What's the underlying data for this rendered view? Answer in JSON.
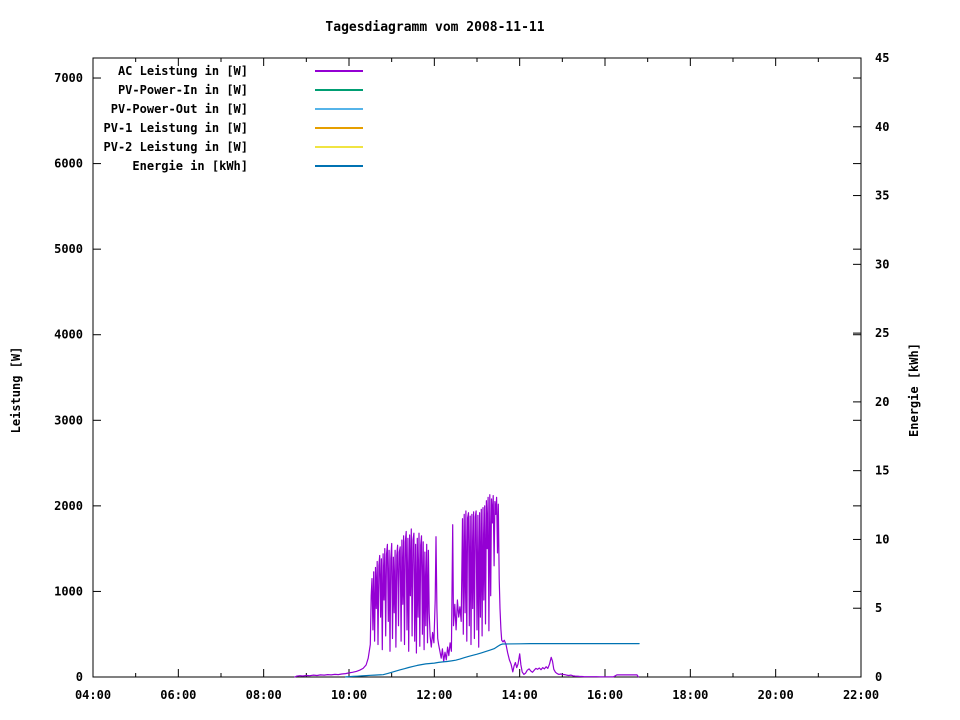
{
  "title": "Tagesdiagramm vom 2008-11-11",
  "colors": {
    "background": "#ffffff",
    "axis": "#000000",
    "text": "#000000",
    "ac_power": "#9400d3",
    "pv_power_in": "#009e73",
    "pv_power_out": "#56b4e9",
    "pv1_power": "#e69f00",
    "pv2_power": "#f0e442",
    "energy": "#0072b2"
  },
  "axes": {
    "x": {
      "major": [
        {
          "h": 4,
          "label": "04:00"
        },
        {
          "h": 6,
          "label": "06:00"
        },
        {
          "h": 8,
          "label": "08:00"
        },
        {
          "h": 10,
          "label": "10:00"
        },
        {
          "h": 12,
          "label": "12:00"
        },
        {
          "h": 14,
          "label": "14:00"
        },
        {
          "h": 16,
          "label": "16:00"
        },
        {
          "h": 18,
          "label": "18:00"
        },
        {
          "h": 20,
          "label": "20:00"
        },
        {
          "h": 22,
          "label": "22:00"
        }
      ],
      "minor": [
        5,
        7,
        9,
        11,
        13,
        15,
        17,
        19,
        21
      ]
    },
    "y_left": {
      "label": "Leistung [W]",
      "ticks": [
        0,
        1000,
        2000,
        3000,
        4000,
        5000,
        6000,
        7000
      ]
    },
    "y_right": {
      "label": "Energie [kWh]",
      "ticks": [
        0,
        5,
        10,
        15,
        20,
        25,
        30,
        35,
        40,
        45
      ]
    }
  },
  "chart_data": {
    "type": "line",
    "title": "Tagesdiagramm vom 2008-11-11",
    "xlabel": "",
    "x_unit": "hour-of-day",
    "xlim": [
      4,
      22
    ],
    "ylabel_left": "Leistung [W]",
    "ylim_left": [
      0,
      7234
    ],
    "ylabel_right": "Energie [kWh]",
    "ylim_right": [
      0,
      45
    ],
    "grid": false,
    "legend_position": "top-left-inside",
    "series": [
      {
        "name": "AC Leistung in [W]",
        "color": "#9400d3",
        "axis": "left",
        "unit": "W",
        "points": [
          [
            8.73,
            0
          ],
          [
            8.78,
            10
          ],
          [
            8.85,
            15
          ],
          [
            8.92,
            12
          ],
          [
            9.0,
            18
          ],
          [
            9.08,
            15
          ],
          [
            9.17,
            22
          ],
          [
            9.25,
            18
          ],
          [
            9.33,
            25
          ],
          [
            9.42,
            22
          ],
          [
            9.5,
            28
          ],
          [
            9.58,
            25
          ],
          [
            9.67,
            30
          ],
          [
            9.75,
            28
          ],
          [
            9.83,
            35
          ],
          [
            9.92,
            40
          ],
          [
            10.0,
            48
          ],
          [
            10.08,
            55
          ],
          [
            10.17,
            65
          ],
          [
            10.25,
            80
          ],
          [
            10.33,
            100
          ],
          [
            10.4,
            140
          ],
          [
            10.45,
            220
          ],
          [
            10.5,
            380
          ],
          [
            10.52,
            950
          ],
          [
            10.54,
            1150
          ],
          [
            10.56,
            550
          ],
          [
            10.58,
            1230
          ],
          [
            10.6,
            420
          ],
          [
            10.62,
            1280
          ],
          [
            10.64,
            800
          ],
          [
            10.66,
            1350
          ],
          [
            10.68,
            380
          ],
          [
            10.7,
            1300
          ],
          [
            10.72,
            1420
          ],
          [
            10.74,
            700
          ],
          [
            10.76,
            1380
          ],
          [
            10.78,
            320
          ],
          [
            10.8,
            1440
          ],
          [
            10.82,
            900
          ],
          [
            10.84,
            1500
          ],
          [
            10.86,
            480
          ],
          [
            10.88,
            1430
          ],
          [
            10.9,
            1550
          ],
          [
            10.92,
            650
          ],
          [
            10.94,
            1480
          ],
          [
            10.96,
            300
          ],
          [
            10.98,
            1380
          ],
          [
            11.0,
            1560
          ],
          [
            11.02,
            450
          ],
          [
            11.04,
            1400
          ],
          [
            11.06,
            750
          ],
          [
            11.08,
            1480
          ],
          [
            11.1,
            350
          ],
          [
            11.12,
            1420
          ],
          [
            11.14,
            1540
          ],
          [
            11.16,
            600
          ],
          [
            11.18,
            1460
          ],
          [
            11.2,
            1520
          ],
          [
            11.22,
            420
          ],
          [
            11.24,
            1600
          ],
          [
            11.26,
            850
          ],
          [
            11.28,
            1650
          ],
          [
            11.3,
            380
          ],
          [
            11.32,
            1580
          ],
          [
            11.34,
            1700
          ],
          [
            11.36,
            550
          ],
          [
            11.38,
            1620
          ],
          [
            11.4,
            300
          ],
          [
            11.42,
            1660
          ],
          [
            11.44,
            950
          ],
          [
            11.46,
            1730
          ],
          [
            11.48,
            480
          ],
          [
            11.5,
            1600
          ],
          [
            11.52,
            1680
          ],
          [
            11.54,
            420
          ],
          [
            11.56,
            1550
          ],
          [
            11.58,
            280
          ],
          [
            11.6,
            1620
          ],
          [
            11.62,
            700
          ],
          [
            11.64,
            1680
          ],
          [
            11.66,
            360
          ],
          [
            11.68,
            1540
          ],
          [
            11.7,
            1650
          ],
          [
            11.72,
            500
          ],
          [
            11.74,
            1580
          ],
          [
            11.76,
            320
          ],
          [
            11.78,
            1460
          ],
          [
            11.8,
            600
          ],
          [
            11.82,
            1550
          ],
          [
            11.84,
            400
          ],
          [
            11.86,
            1480
          ],
          [
            11.88,
            750
          ],
          [
            11.9,
            480
          ],
          [
            11.93,
            350
          ],
          [
            11.96,
            520
          ],
          [
            11.99,
            400
          ],
          [
            12.02,
            900
          ],
          [
            12.04,
            1640
          ],
          [
            12.06,
            800
          ],
          [
            12.08,
            450
          ],
          [
            12.1,
            380
          ],
          [
            12.13,
            300
          ],
          [
            12.16,
            220
          ],
          [
            12.19,
            330
          ],
          [
            12.22,
            180
          ],
          [
            12.25,
            290
          ],
          [
            12.28,
            200
          ],
          [
            12.31,
            350
          ],
          [
            12.34,
            250
          ],
          [
            12.37,
            400
          ],
          [
            12.4,
            300
          ],
          [
            12.43,
            1780
          ],
          [
            12.45,
            600
          ],
          [
            12.48,
            850
          ],
          [
            12.51,
            550
          ],
          [
            12.54,
            900
          ],
          [
            12.57,
            700
          ],
          [
            12.6,
            820
          ],
          [
            12.63,
            650
          ],
          [
            12.66,
            1850
          ],
          [
            12.68,
            500
          ],
          [
            12.7,
            1900
          ],
          [
            12.72,
            750
          ],
          [
            12.74,
            1940
          ],
          [
            12.76,
            420
          ],
          [
            12.78,
            1860
          ],
          [
            12.8,
            1920
          ],
          [
            12.82,
            600
          ],
          [
            12.84,
            1880
          ],
          [
            12.86,
            380
          ],
          [
            12.88,
            1900
          ],
          [
            12.9,
            800
          ],
          [
            12.92,
            1930
          ],
          [
            12.94,
            450
          ],
          [
            12.96,
            1870
          ],
          [
            12.98,
            1940
          ],
          [
            13.0,
            550
          ],
          [
            13.02,
            1890
          ],
          [
            13.04,
            350
          ],
          [
            13.06,
            1920
          ],
          [
            13.08,
            700
          ],
          [
            13.1,
            1960
          ],
          [
            13.12,
            480
          ],
          [
            13.14,
            1980
          ],
          [
            13.16,
            900
          ],
          [
            13.18,
            2000
          ],
          [
            13.2,
            620
          ],
          [
            13.22,
            2060
          ],
          [
            13.24,
            1500
          ],
          [
            13.26,
            2100
          ],
          [
            13.28,
            540
          ],
          [
            13.3,
            2130
          ],
          [
            13.32,
            950
          ],
          [
            13.34,
            2080
          ],
          [
            13.36,
            1800
          ],
          [
            13.38,
            2120
          ],
          [
            13.4,
            1300
          ],
          [
            13.42,
            2050
          ],
          [
            13.44,
            1900
          ],
          [
            13.46,
            2100
          ],
          [
            13.48,
            1450
          ],
          [
            13.5,
            2020
          ],
          [
            13.52,
            1150
          ],
          [
            13.54,
            800
          ],
          [
            13.56,
            560
          ],
          [
            13.58,
            430
          ],
          [
            13.61,
            410
          ],
          [
            13.64,
            430
          ],
          [
            13.68,
            380
          ],
          [
            13.72,
            280
          ],
          [
            13.76,
            200
          ],
          [
            13.8,
            150
          ],
          [
            13.84,
            60
          ],
          [
            13.87,
            130
          ],
          [
            13.9,
            170
          ],
          [
            13.93,
            110
          ],
          [
            13.96,
            150
          ],
          [
            14.0,
            270
          ],
          [
            14.03,
            140
          ],
          [
            14.06,
            60
          ],
          [
            14.1,
            30
          ],
          [
            14.14,
            45
          ],
          [
            14.18,
            80
          ],
          [
            14.22,
            95
          ],
          [
            14.26,
            70
          ],
          [
            14.3,
            55
          ],
          [
            14.34,
            80
          ],
          [
            14.38,
            100
          ],
          [
            14.42,
            90
          ],
          [
            14.46,
            105
          ],
          [
            14.5,
            85
          ],
          [
            14.54,
            110
          ],
          [
            14.58,
            95
          ],
          [
            14.62,
            120
          ],
          [
            14.66,
            100
          ],
          [
            14.7,
            150
          ],
          [
            14.74,
            230
          ],
          [
            14.77,
            185
          ],
          [
            14.8,
            90
          ],
          [
            14.84,
            55
          ],
          [
            14.88,
            40
          ],
          [
            14.92,
            30
          ],
          [
            14.96,
            35
          ],
          [
            15.0,
            32
          ],
          [
            15.05,
            28
          ],
          [
            15.1,
            22
          ],
          [
            15.15,
            18
          ],
          [
            15.2,
            22
          ],
          [
            15.25,
            14
          ],
          [
            15.3,
            10
          ],
          [
            15.4,
            7
          ],
          [
            15.5,
            5
          ],
          [
            15.6,
            4
          ],
          [
            15.7,
            3
          ],
          [
            15.8,
            3
          ],
          [
            15.9,
            2
          ],
          [
            16.0,
            2
          ],
          [
            16.1,
            2
          ],
          [
            16.2,
            2
          ],
          [
            16.28,
            24
          ],
          [
            16.4,
            24
          ],
          [
            16.5,
            24
          ],
          [
            16.6,
            24
          ],
          [
            16.7,
            24
          ],
          [
            16.75,
            24
          ],
          [
            16.78,
            2
          ]
        ]
      },
      {
        "name": "PV-Power-In in [W]",
        "color": "#009e73",
        "axis": "left",
        "unit": "W",
        "visible_in_plot": false,
        "points": []
      },
      {
        "name": "PV-Power-Out in [W]",
        "color": "#56b4e9",
        "axis": "left",
        "unit": "W",
        "visible_in_plot": false,
        "points": []
      },
      {
        "name": "PV-1 Leistung in [W]",
        "color": "#e69f00",
        "axis": "left",
        "unit": "W",
        "visible_in_plot": false,
        "points": []
      },
      {
        "name": "PV-2 Leistung in [W]",
        "color": "#f0e442",
        "axis": "left",
        "unit": "W",
        "visible_in_plot": false,
        "points": []
      },
      {
        "name": "Energie in [kWh]",
        "color": "#0072b2",
        "axis": "right",
        "unit": "kWh",
        "points": [
          [
            9.92,
            0.01
          ],
          [
            10.0,
            0.02
          ],
          [
            10.1,
            0.04
          ],
          [
            10.2,
            0.06
          ],
          [
            10.3,
            0.08
          ],
          [
            10.4,
            0.1
          ],
          [
            10.5,
            0.12
          ],
          [
            10.6,
            0.14
          ],
          [
            10.7,
            0.15
          ],
          [
            10.8,
            0.17
          ],
          [
            10.9,
            0.25
          ],
          [
            11.0,
            0.34
          ],
          [
            11.1,
            0.43
          ],
          [
            11.2,
            0.52
          ],
          [
            11.3,
            0.6
          ],
          [
            11.4,
            0.69
          ],
          [
            11.5,
            0.77
          ],
          [
            11.6,
            0.84
          ],
          [
            11.7,
            0.9
          ],
          [
            11.8,
            0.95
          ],
          [
            11.9,
            0.98
          ],
          [
            12.0,
            1.01
          ],
          [
            12.1,
            1.06
          ],
          [
            12.2,
            1.1
          ],
          [
            12.3,
            1.13
          ],
          [
            12.4,
            1.17
          ],
          [
            12.5,
            1.22
          ],
          [
            12.6,
            1.3
          ],
          [
            12.7,
            1.4
          ],
          [
            12.8,
            1.5
          ],
          [
            12.9,
            1.58
          ],
          [
            13.0,
            1.66
          ],
          [
            13.1,
            1.75
          ],
          [
            13.2,
            1.85
          ],
          [
            13.3,
            1.95
          ],
          [
            13.4,
            2.06
          ],
          [
            13.45,
            2.15
          ],
          [
            13.5,
            2.25
          ],
          [
            13.55,
            2.35
          ],
          [
            13.6,
            2.4
          ],
          [
            14.0,
            2.41
          ],
          [
            14.25,
            2.43
          ],
          [
            16.8,
            2.43
          ]
        ]
      }
    ]
  }
}
